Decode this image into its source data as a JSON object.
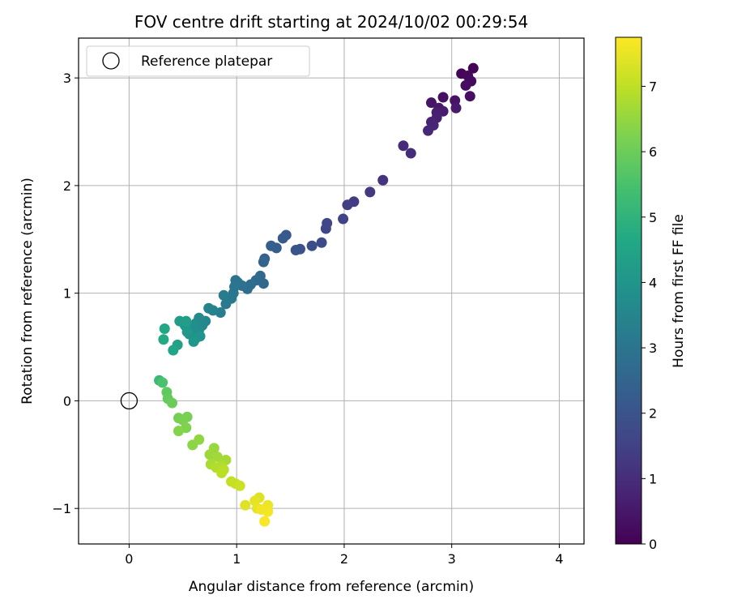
{
  "chart_data": {
    "type": "scatter",
    "title": "FOV centre drift starting at 2024/10/02 00:29:54",
    "xlabel": "Angular distance from reference (arcmin)",
    "ylabel": "Rotation from reference (arcmin)",
    "xlim": [
      -0.47,
      4.23
    ],
    "ylim": [
      -1.33,
      3.37
    ],
    "xticks": [
      0,
      1,
      2,
      3,
      4
    ],
    "yticks": [
      -1,
      0,
      1,
      2,
      3
    ],
    "xtick_labels": [
      "0",
      "1",
      "2",
      "3",
      "4"
    ],
    "ytick_labels": [
      "−1",
      "0",
      "1",
      "2",
      "3"
    ],
    "grid": true,
    "legend": {
      "position": "upper-left",
      "entries": [
        "Reference platepar"
      ]
    },
    "reference_point": {
      "label": "Reference platepar",
      "x": 0,
      "y": 0,
      "marker": "open-circle"
    },
    "colorbar": {
      "label": "Hours from first FF file",
      "range": [
        0,
        7.75
      ],
      "ticks": [
        0,
        1,
        2,
        3,
        4,
        5,
        6,
        7
      ],
      "tick_labels": [
        "0",
        "1",
        "2",
        "3",
        "4",
        "5",
        "6",
        "7"
      ],
      "colormap": "viridis",
      "colors": [
        "#440154",
        "#482475",
        "#414487",
        "#355f8d",
        "#2a788e",
        "#21918c",
        "#22a884",
        "#44bf70",
        "#7ad151",
        "#bddf26",
        "#fde725"
      ]
    },
    "points": [
      {
        "x": 3.2,
        "y": 3.09,
        "t": 0.05
      },
      {
        "x": 3.09,
        "y": 3.04,
        "t": 0.1
      },
      {
        "x": 3.15,
        "y": 3.02,
        "t": 0.15
      },
      {
        "x": 3.18,
        "y": 2.97,
        "t": 0.2
      },
      {
        "x": 3.13,
        "y": 2.93,
        "t": 0.25
      },
      {
        "x": 3.17,
        "y": 2.83,
        "t": 0.3
      },
      {
        "x": 2.92,
        "y": 2.82,
        "t": 0.35
      },
      {
        "x": 3.03,
        "y": 2.79,
        "t": 0.4
      },
      {
        "x": 2.81,
        "y": 2.77,
        "t": 0.45
      },
      {
        "x": 2.88,
        "y": 2.72,
        "t": 0.5
      },
      {
        "x": 3.04,
        "y": 2.72,
        "t": 0.55
      },
      {
        "x": 2.92,
        "y": 2.69,
        "t": 0.6
      },
      {
        "x": 2.86,
        "y": 2.68,
        "t": 0.65
      },
      {
        "x": 2.86,
        "y": 2.63,
        "t": 0.7
      },
      {
        "x": 2.81,
        "y": 2.59,
        "t": 0.75
      },
      {
        "x": 2.83,
        "y": 2.56,
        "t": 0.8
      },
      {
        "x": 2.78,
        "y": 2.51,
        "t": 0.85
      },
      {
        "x": 2.55,
        "y": 2.37,
        "t": 0.95
      },
      {
        "x": 2.62,
        "y": 2.3,
        "t": 1.0
      },
      {
        "x": 2.36,
        "y": 2.05,
        "t": 1.15
      },
      {
        "x": 2.24,
        "y": 1.94,
        "t": 1.25
      },
      {
        "x": 2.09,
        "y": 1.85,
        "t": 1.35
      },
      {
        "x": 2.03,
        "y": 1.82,
        "t": 1.4
      },
      {
        "x": 1.99,
        "y": 1.69,
        "t": 1.5
      },
      {
        "x": 1.84,
        "y": 1.65,
        "t": 1.6
      },
      {
        "x": 1.83,
        "y": 1.6,
        "t": 1.65
      },
      {
        "x": 1.79,
        "y": 1.47,
        "t": 1.75
      },
      {
        "x": 1.7,
        "y": 1.44,
        "t": 1.85
      },
      {
        "x": 1.59,
        "y": 1.41,
        "t": 1.95
      },
      {
        "x": 1.55,
        "y": 1.4,
        "t": 2.0
      },
      {
        "x": 1.46,
        "y": 1.54,
        "t": 2.15
      },
      {
        "x": 1.43,
        "y": 1.51,
        "t": 2.2
      },
      {
        "x": 1.37,
        "y": 1.42,
        "t": 2.3
      },
      {
        "x": 1.32,
        "y": 1.44,
        "t": 2.35
      },
      {
        "x": 1.26,
        "y": 1.32,
        "t": 2.45
      },
      {
        "x": 1.25,
        "y": 1.29,
        "t": 2.5
      },
      {
        "x": 1.25,
        "y": 1.09,
        "t": 2.6
      },
      {
        "x": 1.22,
        "y": 1.16,
        "t": 2.65
      },
      {
        "x": 1.18,
        "y": 1.12,
        "t": 2.7
      },
      {
        "x": 1.13,
        "y": 1.08,
        "t": 2.75
      },
      {
        "x": 1.1,
        "y": 1.04,
        "t": 2.8
      },
      {
        "x": 1.05,
        "y": 1.07,
        "t": 2.85
      },
      {
        "x": 1.01,
        "y": 1.1,
        "t": 2.9
      },
      {
        "x": 0.99,
        "y": 1.12,
        "t": 2.95
      },
      {
        "x": 0.98,
        "y": 1.06,
        "t": 3.0
      },
      {
        "x": 0.97,
        "y": 1.0,
        "t": 3.05
      },
      {
        "x": 0.95,
        "y": 0.95,
        "t": 3.1
      },
      {
        "x": 0.9,
        "y": 0.9,
        "t": 3.15
      },
      {
        "x": 0.88,
        "y": 0.98,
        "t": 3.2
      },
      {
        "x": 0.85,
        "y": 0.82,
        "t": 3.3
      },
      {
        "x": 0.78,
        "y": 0.84,
        "t": 3.4
      },
      {
        "x": 0.74,
        "y": 0.86,
        "t": 3.45
      },
      {
        "x": 0.71,
        "y": 0.74,
        "t": 3.55
      },
      {
        "x": 0.68,
        "y": 0.7,
        "t": 3.6
      },
      {
        "x": 0.65,
        "y": 0.77,
        "t": 3.65
      },
      {
        "x": 0.65,
        "y": 0.66,
        "t": 3.7
      },
      {
        "x": 0.62,
        "y": 0.72,
        "t": 3.75
      },
      {
        "x": 0.6,
        "y": 0.7,
        "t": 3.8
      },
      {
        "x": 0.58,
        "y": 0.66,
        "t": 3.85
      },
      {
        "x": 0.56,
        "y": 0.62,
        "t": 3.9
      },
      {
        "x": 0.62,
        "y": 0.58,
        "t": 3.95
      },
      {
        "x": 0.66,
        "y": 0.6,
        "t": 4.0
      },
      {
        "x": 0.6,
        "y": 0.55,
        "t": 4.05
      },
      {
        "x": 0.54,
        "y": 0.64,
        "t": 4.1
      },
      {
        "x": 0.52,
        "y": 0.7,
        "t": 4.15
      },
      {
        "x": 0.47,
        "y": 0.74,
        "t": 4.25
      },
      {
        "x": 0.53,
        "y": 0.74,
        "t": 4.3
      },
      {
        "x": 0.45,
        "y": 0.52,
        "t": 4.4
      },
      {
        "x": 0.41,
        "y": 0.47,
        "t": 4.5
      },
      {
        "x": 0.33,
        "y": 0.67,
        "t": 4.6
      },
      {
        "x": 0.32,
        "y": 0.57,
        "t": 4.7
      },
      {
        "x": 0.28,
        "y": 0.19,
        "t": 5.2
      },
      {
        "x": 0.31,
        "y": 0.17,
        "t": 5.5
      },
      {
        "x": 0.35,
        "y": 0.08,
        "t": 5.8
      },
      {
        "x": 0.36,
        "y": 0.02,
        "t": 5.9
      },
      {
        "x": 0.4,
        "y": -0.02,
        "t": 6.0
      },
      {
        "x": 0.46,
        "y": -0.16,
        "t": 6.1
      },
      {
        "x": 0.54,
        "y": -0.15,
        "t": 6.15
      },
      {
        "x": 0.5,
        "y": -0.18,
        "t": 6.2
      },
      {
        "x": 0.53,
        "y": -0.25,
        "t": 6.25
      },
      {
        "x": 0.46,
        "y": -0.28,
        "t": 6.3
      },
      {
        "x": 0.59,
        "y": -0.41,
        "t": 6.4
      },
      {
        "x": 0.65,
        "y": -0.36,
        "t": 6.45
      },
      {
        "x": 0.79,
        "y": -0.44,
        "t": 6.55
      },
      {
        "x": 0.75,
        "y": -0.5,
        "t": 6.6
      },
      {
        "x": 0.82,
        "y": -0.52,
        "t": 6.65
      },
      {
        "x": 0.9,
        "y": -0.55,
        "t": 6.7
      },
      {
        "x": 0.76,
        "y": -0.59,
        "t": 6.75
      },
      {
        "x": 0.86,
        "y": -0.6,
        "t": 6.8
      },
      {
        "x": 0.81,
        "y": -0.62,
        "t": 6.85
      },
      {
        "x": 0.88,
        "y": -0.64,
        "t": 6.9
      },
      {
        "x": 0.86,
        "y": -0.67,
        "t": 6.95
      },
      {
        "x": 0.95,
        "y": -0.75,
        "t": 7.05
      },
      {
        "x": 0.99,
        "y": -0.77,
        "t": 7.1
      },
      {
        "x": 1.03,
        "y": -0.79,
        "t": 7.15
      },
      {
        "x": 1.21,
        "y": -0.9,
        "t": 7.35
      },
      {
        "x": 1.08,
        "y": -0.97,
        "t": 7.4
      },
      {
        "x": 1.17,
        "y": -0.93,
        "t": 7.45
      },
      {
        "x": 1.19,
        "y": -1.0,
        "t": 7.5
      },
      {
        "x": 1.29,
        "y": -0.97,
        "t": 7.55
      },
      {
        "x": 1.23,
        "y": -1.01,
        "t": 7.6
      },
      {
        "x": 1.29,
        "y": -1.03,
        "t": 7.65
      },
      {
        "x": 1.26,
        "y": -1.12,
        "t": 7.7
      }
    ]
  }
}
